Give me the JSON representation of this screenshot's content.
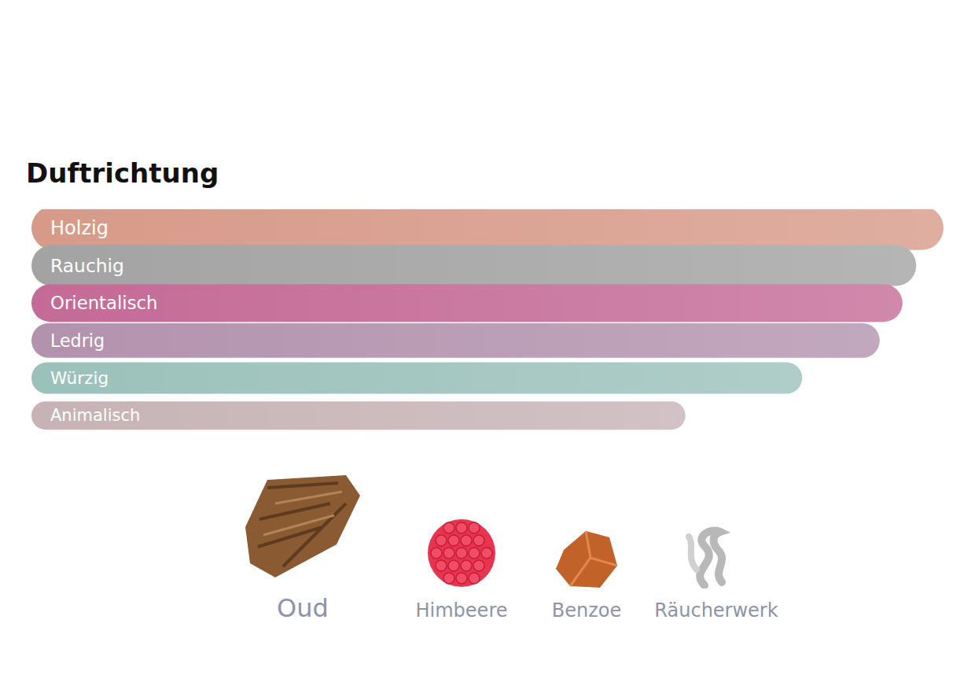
{
  "chart_data": {
    "type": "bar",
    "title": "Duftrichtung",
    "orientation": "horizontal",
    "categories": [
      "Holzig",
      "Rauchig",
      "Orientalisch",
      "Ledrig",
      "Würzig",
      "Animalisch"
    ],
    "values": [
      100,
      97,
      95.5,
      93,
      84.5,
      71.7
    ],
    "colors": [
      "#d79a88",
      "#a3a3a3",
      "#c46a96",
      "#b392ae",
      "#9bc1bb",
      "#c7b3b6"
    ],
    "xlim": [
      0,
      100
    ],
    "grid": false,
    "tick_labels": false
  },
  "ingredients": [
    "Oud",
    "Himbeere",
    "Benzoe",
    "Räucherwerk"
  ]
}
